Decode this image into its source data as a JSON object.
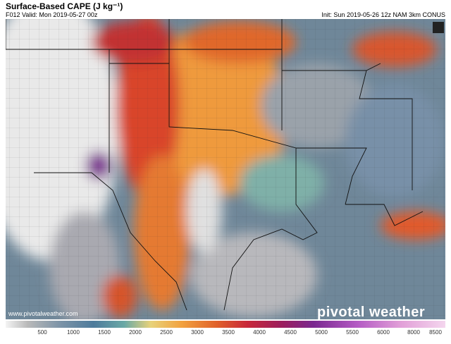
{
  "header": {
    "title": "Surface-Based CAPE (J kg⁻¹)",
    "valid": "F012 Valid: Mon 2019-05-27 00z",
    "init": "Init: Sun 2019-05-26 12z NAM 3km CONUS"
  },
  "footer": {
    "website": "www.pivotalweather.com",
    "brand": "pivotal weather"
  },
  "colorbar": {
    "ticks": [
      500,
      1000,
      1500,
      2000,
      2500,
      3000,
      3500,
      4000,
      4500,
      5000,
      5500,
      6000,
      8000,
      8500
    ]
  }
}
